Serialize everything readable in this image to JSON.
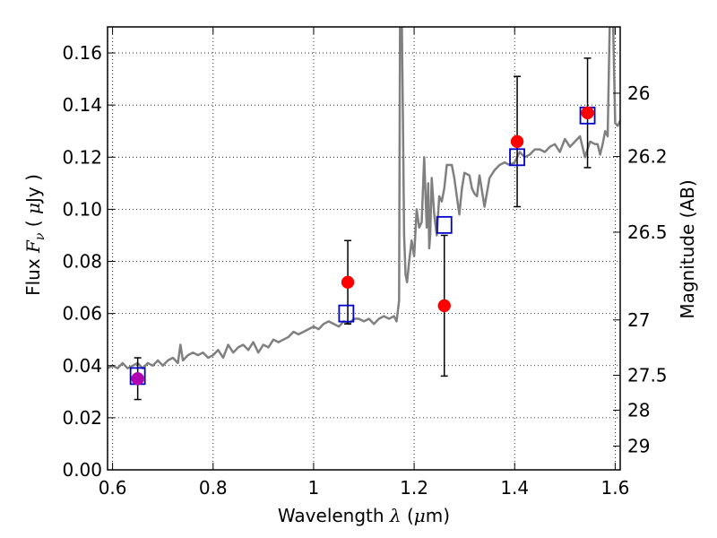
{
  "chart_data": {
    "type": "scatter",
    "xlabel": "Wavelength  λ (μm)",
    "ylabel": "Flux  Fν  ( μJy )",
    "ylabel_parts": {
      "a": "Flux  ",
      "b": "F",
      "b_sub": "ν",
      "c": "  (  ",
      "d": "μ",
      "e": "Jy )"
    },
    "xlabel_parts": {
      "a": "Wavelength  ",
      "b": "λ",
      "c": " (",
      "d": "μ",
      "e": "m)"
    },
    "y2label": "Magnitude (AB)",
    "xlim": [
      0.59,
      1.61
    ],
    "ylim": [
      0.0,
      0.17
    ],
    "grid": true,
    "x_ticks": [
      {
        "v": 0.6,
        "label": "0.6"
      },
      {
        "v": 0.8,
        "label": "0.8"
      },
      {
        "v": 1.0,
        "label": "1"
      },
      {
        "v": 1.2,
        "label": "1.2"
      },
      {
        "v": 1.4,
        "label": "1.4"
      },
      {
        "v": 1.6,
        "label": "1.6"
      }
    ],
    "y_ticks": [
      {
        "v": 0.0,
        "label": "0.00"
      },
      {
        "v": 0.02,
        "label": "0.02"
      },
      {
        "v": 0.04,
        "label": "0.04"
      },
      {
        "v": 0.06,
        "label": "0.06"
      },
      {
        "v": 0.08,
        "label": "0.08"
      },
      {
        "v": 0.1,
        "label": "0.10"
      },
      {
        "v": 0.12,
        "label": "0.12"
      },
      {
        "v": 0.14,
        "label": "0.14"
      },
      {
        "v": 0.16,
        "label": "0.16"
      }
    ],
    "mag_ticks": [
      {
        "mag": 26,
        "label": "26"
      },
      {
        "mag": 26.2,
        "label": "26.2"
      },
      {
        "mag": 26.5,
        "label": "26.5"
      },
      {
        "mag": 27,
        "label": "27"
      },
      {
        "mag": 27.5,
        "label": "27.5"
      },
      {
        "mag": 28,
        "label": "28"
      },
      {
        "mag": 29,
        "label": "29"
      }
    ],
    "colors": {
      "model": "#808080",
      "observed": "#ff0000",
      "model_photometry": "#0000cc",
      "errorbar": "#000000",
      "first_point": "#b000b0",
      "grid": "#000000"
    },
    "series": [
      {
        "kind": "line",
        "role": "model spectrum",
        "x": [
          0.59,
          0.6,
          0.61,
          0.62,
          0.63,
          0.64,
          0.65,
          0.66,
          0.67,
          0.68,
          0.69,
          0.7,
          0.71,
          0.72,
          0.73,
          0.735,
          0.74,
          0.75,
          0.76,
          0.77,
          0.78,
          0.79,
          0.8,
          0.81,
          0.82,
          0.83,
          0.84,
          0.85,
          0.86,
          0.87,
          0.88,
          0.89,
          0.9,
          0.91,
          0.92,
          0.93,
          0.94,
          0.95,
          0.96,
          0.97,
          0.98,
          0.99,
          1.0,
          1.01,
          1.02,
          1.03,
          1.04,
          1.05,
          1.06,
          1.07,
          1.08,
          1.09,
          1.1,
          1.11,
          1.12,
          1.13,
          1.14,
          1.15,
          1.16,
          1.165,
          1.17,
          1.172,
          1.175,
          1.178,
          1.18,
          1.183,
          1.186,
          1.19,
          1.195,
          1.2,
          1.205,
          1.21,
          1.215,
          1.22,
          1.225,
          1.228,
          1.23,
          1.232,
          1.235,
          1.24,
          1.245,
          1.25,
          1.255,
          1.26,
          1.265,
          1.27,
          1.275,
          1.28,
          1.285,
          1.29,
          1.295,
          1.3,
          1.31,
          1.315,
          1.32,
          1.325,
          1.33,
          1.34,
          1.35,
          1.36,
          1.37,
          1.38,
          1.39,
          1.4,
          1.41,
          1.42,
          1.43,
          1.44,
          1.45,
          1.46,
          1.47,
          1.48,
          1.49,
          1.5,
          1.51,
          1.52,
          1.53,
          1.54,
          1.55,
          1.56,
          1.565,
          1.57,
          1.575,
          1.58,
          1.585,
          1.59,
          1.595,
          1.6,
          1.605,
          1.61
        ],
        "y": [
          0.039,
          0.04,
          0.039,
          0.041,
          0.039,
          0.04,
          0.041,
          0.039,
          0.041,
          0.04,
          0.042,
          0.04,
          0.042,
          0.043,
          0.041,
          0.048,
          0.042,
          0.044,
          0.045,
          0.044,
          0.045,
          0.043,
          0.044,
          0.046,
          0.043,
          0.048,
          0.045,
          0.047,
          0.048,
          0.046,
          0.049,
          0.045,
          0.048,
          0.047,
          0.05,
          0.049,
          0.05,
          0.051,
          0.053,
          0.052,
          0.053,
          0.054,
          0.055,
          0.054,
          0.056,
          0.057,
          0.056,
          0.055,
          0.057,
          0.056,
          0.058,
          0.058,
          0.057,
          0.058,
          0.056,
          0.058,
          0.059,
          0.058,
          0.059,
          0.057,
          0.065,
          0.18,
          0.18,
          0.13,
          0.09,
          0.075,
          0.072,
          0.08,
          0.088,
          0.082,
          0.1,
          0.093,
          0.095,
          0.12,
          0.093,
          0.11,
          0.085,
          0.09,
          0.112,
          0.098,
          0.09,
          0.105,
          0.103,
          0.108,
          0.117,
          0.117,
          0.117,
          0.112,
          0.105,
          0.098,
          0.108,
          0.114,
          0.113,
          0.108,
          0.106,
          0.105,
          0.113,
          0.101,
          0.112,
          0.115,
          0.117,
          0.118,
          0.117,
          0.118,
          0.122,
          0.12,
          0.121,
          0.123,
          0.123,
          0.122,
          0.124,
          0.125,
          0.122,
          0.127,
          0.124,
          0.126,
          0.128,
          0.12,
          0.126,
          0.125,
          0.125,
          0.121,
          0.125,
          0.13,
          0.128,
          0.18,
          0.18,
          0.133,
          0.132,
          0.134
        ]
      },
      {
        "kind": "points",
        "role": "observed photometry",
        "x": [
          0.65,
          1.068,
          1.26,
          1.405,
          1.545
        ],
        "y": [
          0.035,
          0.072,
          0.063,
          0.126,
          0.137
        ],
        "yerr_low": [
          0.008,
          0.016,
          0.027,
          0.025,
          0.021
        ],
        "yerr_high": [
          0.008,
          0.016,
          0.027,
          0.025,
          0.021
        ]
      },
      {
        "kind": "squares",
        "role": "model photometry",
        "x": [
          0.65,
          1.065,
          1.26,
          1.405,
          1.545
        ],
        "y": [
          0.036,
          0.06,
          0.094,
          0.12,
          0.136
        ]
      }
    ]
  }
}
